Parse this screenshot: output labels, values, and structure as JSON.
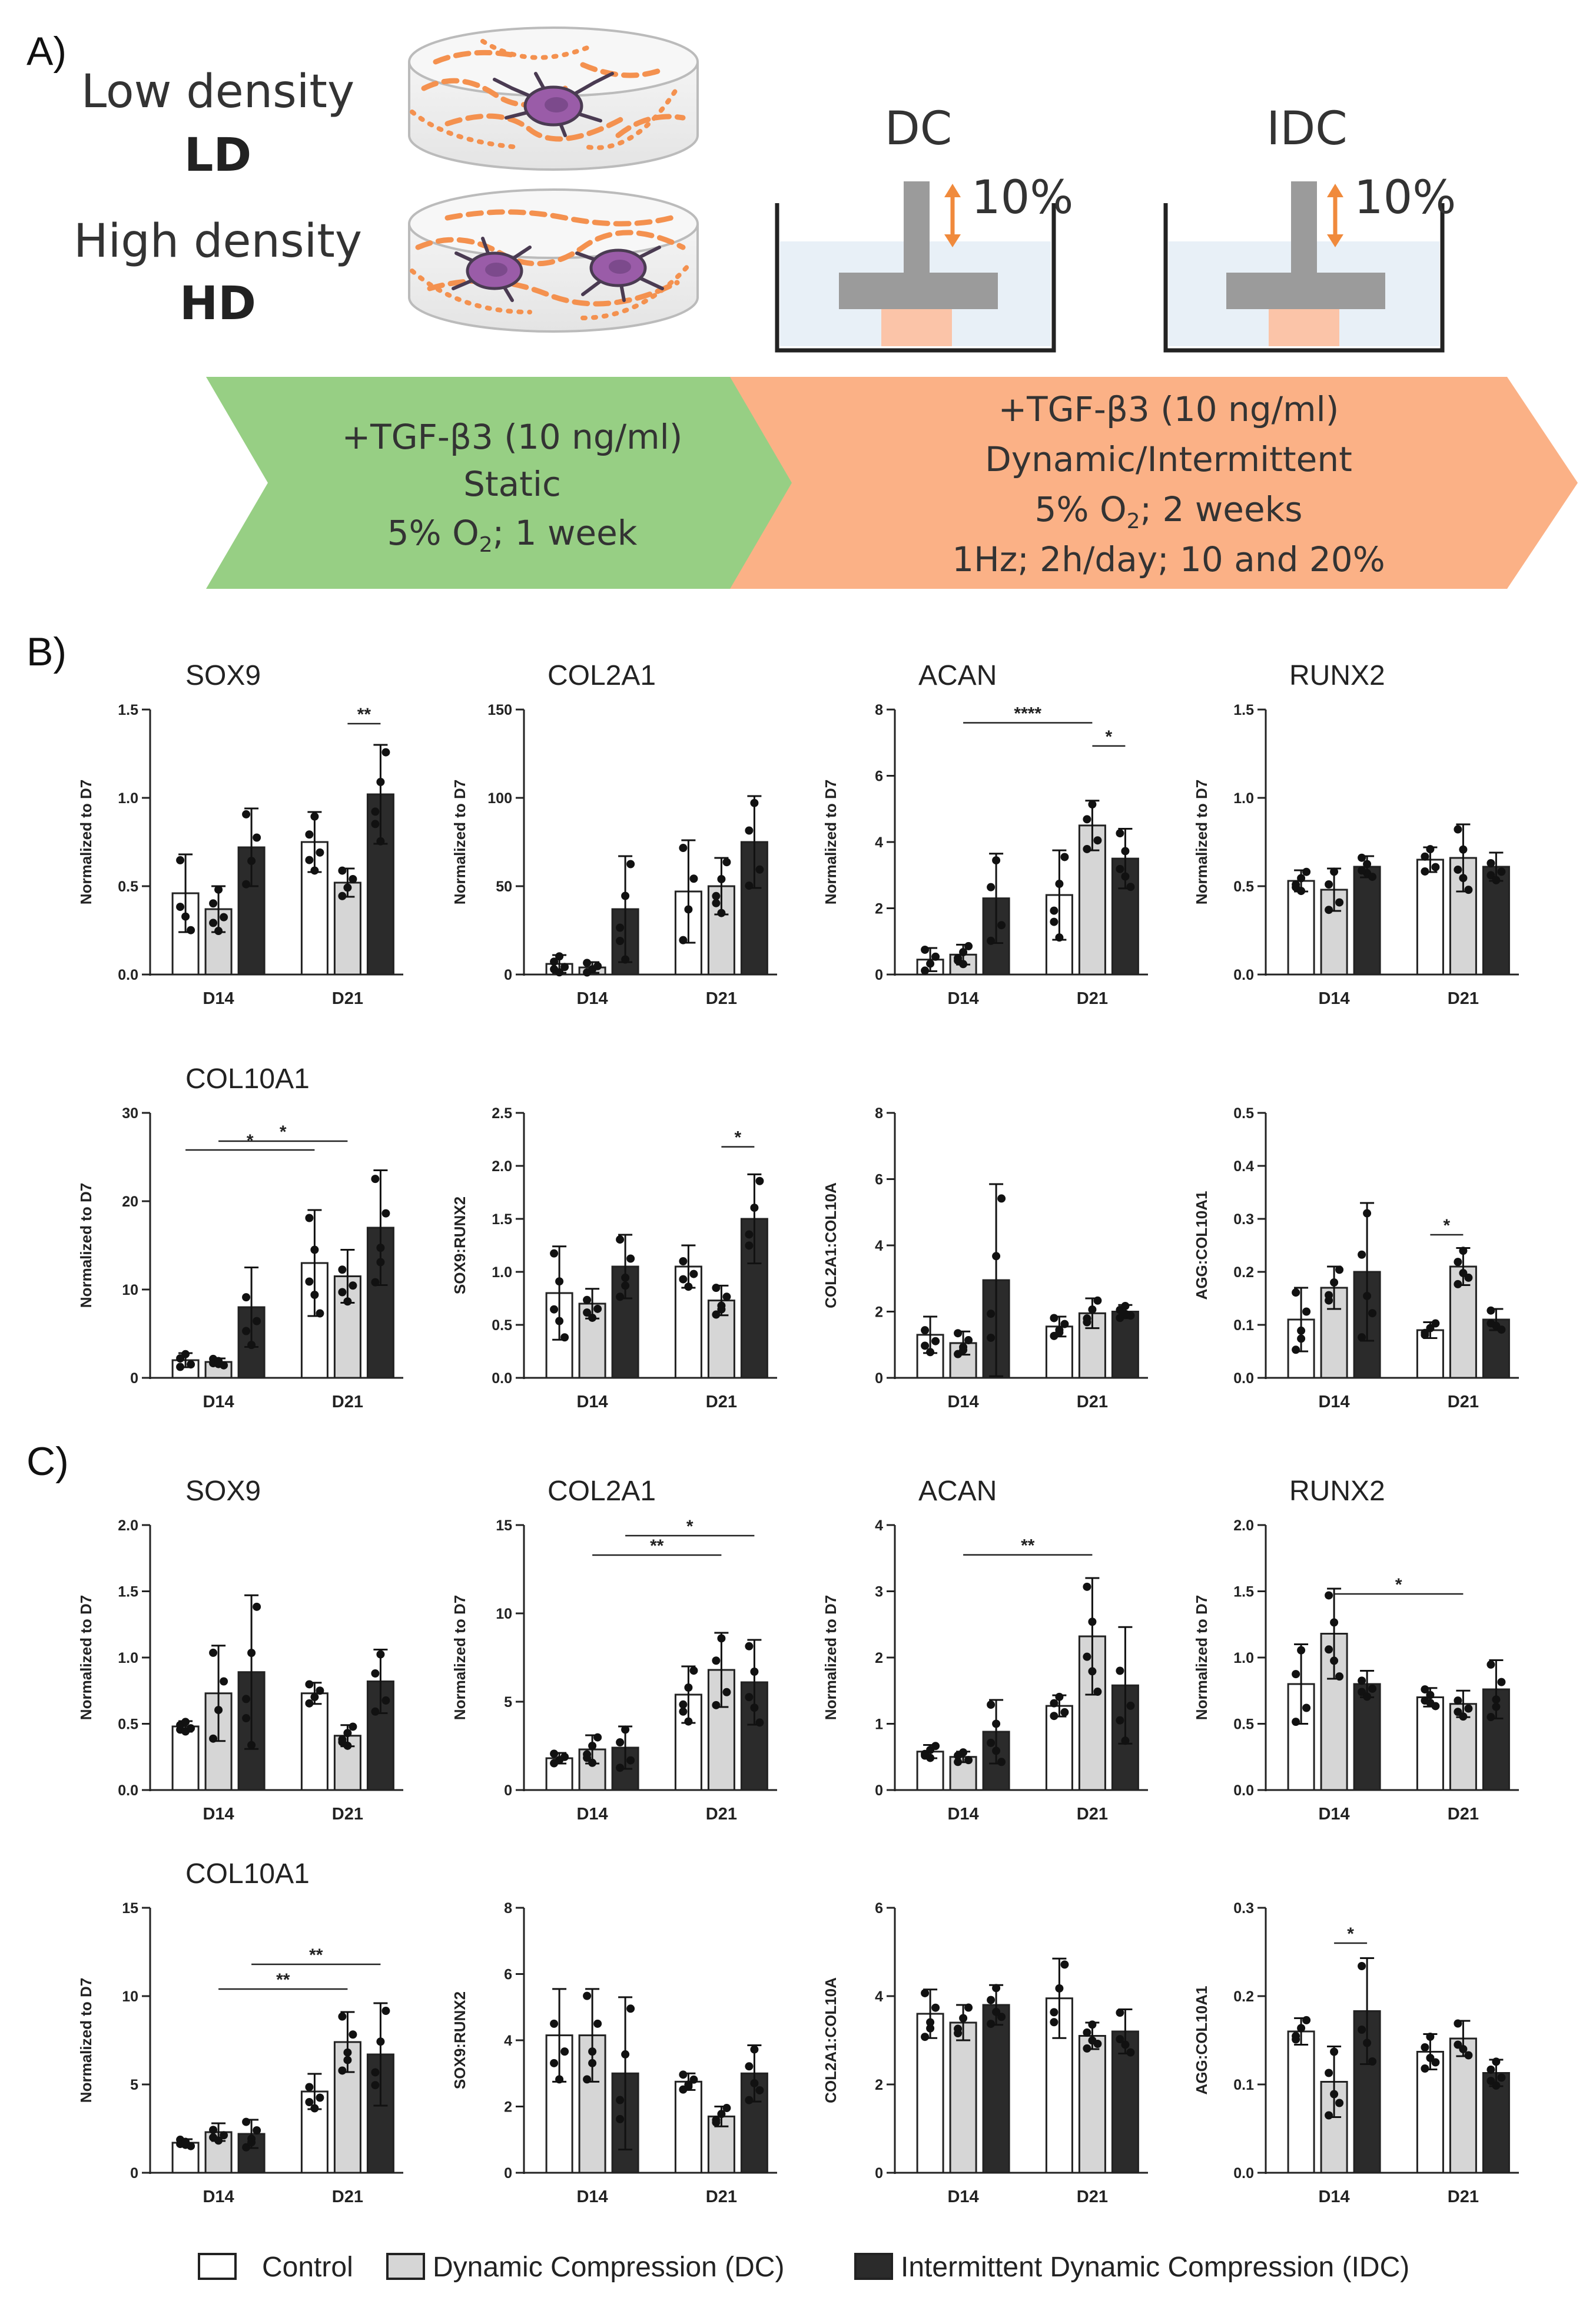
{
  "figure": {
    "panel_a": "A)",
    "panel_b": "B)",
    "panel_c": "C)"
  },
  "schematic": {
    "ld_title": "Low density",
    "ld_abbr": "LD",
    "hd_title": "High density",
    "hd_abbr": "HD",
    "dc_title": "DC",
    "idc_title": "IDC",
    "dc_strain": "10%",
    "idc_strain": "10%",
    "static_arrow": {
      "line1": "+TGF-β3 (10 ng/ml)",
      "line2": "Static",
      "line3_pre": "5% O",
      "line3_sub": "2",
      "line3_post": "; 1 week"
    },
    "dynamic_arrow": {
      "line1": "+TGF-β3 (10 ng/ml)",
      "line2": "Dynamic/Intermittent",
      "line3_pre": "5% O",
      "line3_sub": "2",
      "line3_post": "; 2 weeks",
      "line4": "1Hz; 2h/day; 10 and 20%"
    }
  },
  "legend": {
    "control": "Control",
    "dc": "Dynamic Compression (DC)",
    "idc": "Intermittent Dynamic Compression (IDC)"
  },
  "colors": {
    "control": "#ffffff",
    "dc": "#d6d6d6",
    "idc": "#2b2b2b",
    "green_arrow": "#97cf84",
    "orange_arrow": "#fbb186",
    "fiber": "#f4914f",
    "cell": "#9a5ca8"
  },
  "chart_data": [
    {
      "id": "b1",
      "type": "bar",
      "title": "SOX9",
      "ylabel": "Normalized to D7",
      "ylim": [
        0,
        1.5
      ],
      "ticks": [
        "0.0",
        "0.5",
        "1.0",
        "1.5"
      ],
      "categories": [
        "D14",
        "D21"
      ],
      "series": [
        {
          "name": "Control",
          "values": [
            0.46,
            0.75
          ],
          "err": [
            0.22,
            0.17
          ]
        },
        {
          "name": "Dynamic Compression (DC)",
          "values": [
            0.37,
            0.52
          ],
          "err": [
            0.13,
            0.08
          ]
        },
        {
          "name": "Intermittent Dynamic Compression (IDC)",
          "values": [
            0.72,
            1.02
          ],
          "err": [
            0.22,
            0.28
          ]
        }
      ],
      "annotations": [
        {
          "label": "**",
          "from": [
            1,
            1
          ],
          "to": [
            1,
            2
          ],
          "y": 1.42
        }
      ]
    },
    {
      "id": "b2",
      "type": "bar",
      "title": "COL2A1",
      "ylabel": "Normalized to D7",
      "ylim": [
        0,
        150
      ],
      "ticks": [
        "0",
        "50",
        "100",
        "150"
      ],
      "categories": [
        "D14",
        "D21"
      ],
      "series": [
        {
          "name": "Control",
          "values": [
            6,
            47
          ],
          "err": [
            5,
            29
          ]
        },
        {
          "name": "Dynamic Compression (DC)",
          "values": [
            4,
            50
          ],
          "err": [
            3,
            16
          ]
        },
        {
          "name": "Intermittent Dynamic Compression (IDC)",
          "values": [
            37,
            75
          ],
          "err": [
            30,
            26
          ]
        }
      ],
      "annotations": []
    },
    {
      "id": "b3",
      "type": "bar",
      "title": "ACAN",
      "ylabel": "Normalized to D7",
      "ylim": [
        0,
        8
      ],
      "ticks": [
        "0",
        "2",
        "4",
        "6",
        "8"
      ],
      "categories": [
        "D14",
        "D21"
      ],
      "series": [
        {
          "name": "Control",
          "values": [
            0.45,
            2.4
          ],
          "err": [
            0.35,
            1.35
          ]
        },
        {
          "name": "Dynamic Compression (DC)",
          "values": [
            0.6,
            4.5
          ],
          "err": [
            0.3,
            0.75
          ]
        },
        {
          "name": "Intermittent Dynamic Compression (IDC)",
          "values": [
            2.3,
            3.5
          ],
          "err": [
            1.35,
            0.9
          ]
        }
      ],
      "annotations": [
        {
          "label": "****",
          "from": [
            0,
            1
          ],
          "to": [
            1,
            1
          ],
          "y": 7.6
        },
        {
          "label": "*",
          "from": [
            1,
            1
          ],
          "to": [
            1,
            2
          ],
          "y": 6.9
        }
      ]
    },
    {
      "id": "b4",
      "type": "bar",
      "title": "RUNX2",
      "ylabel": "Normalized to D7",
      "ylim": [
        0,
        1.5
      ],
      "ticks": [
        "0.0",
        "0.5",
        "1.0",
        "1.5"
      ],
      "categories": [
        "D14",
        "D21"
      ],
      "series": [
        {
          "name": "Control",
          "values": [
            0.53,
            0.65
          ],
          "err": [
            0.06,
            0.07
          ]
        },
        {
          "name": "Dynamic Compression (DC)",
          "values": [
            0.48,
            0.66
          ],
          "err": [
            0.12,
            0.19
          ]
        },
        {
          "name": "Intermittent Dynamic Compression (IDC)",
          "values": [
            0.61,
            0.61
          ],
          "err": [
            0.06,
            0.08
          ]
        }
      ],
      "annotations": []
    },
    {
      "id": "b5",
      "type": "bar",
      "title": "COL10A1",
      "ylabel": "Normalized to D7",
      "ylim": [
        0,
        30
      ],
      "ticks": [
        "0",
        "10",
        "20",
        "30"
      ],
      "categories": [
        "D14",
        "D21"
      ],
      "series": [
        {
          "name": "Control",
          "values": [
            2,
            13
          ],
          "err": [
            0.8,
            6
          ]
        },
        {
          "name": "Dynamic Compression (DC)",
          "values": [
            1.8,
            11.5
          ],
          "err": [
            0.4,
            3
          ]
        },
        {
          "name": "Intermittent Dynamic Compression (IDC)",
          "values": [
            8,
            17
          ],
          "err": [
            4.5,
            6.5
          ]
        }
      ],
      "annotations": [
        {
          "label": "*",
          "from": [
            0,
            0
          ],
          "to": [
            1,
            0
          ],
          "y": 25.8
        },
        {
          "label": "*",
          "from": [
            0,
            1
          ],
          "to": [
            1,
            1
          ],
          "y": 26.8
        }
      ]
    },
    {
      "id": "b6",
      "type": "bar",
      "title": "",
      "ylabel": "SOX9:RUNX2",
      "ylim": [
        0,
        2.5
      ],
      "ticks": [
        "0.0",
        "0.5",
        "1.0",
        "1.5",
        "2.0",
        "2.5"
      ],
      "categories": [
        "D14",
        "D21"
      ],
      "series": [
        {
          "name": "Control",
          "values": [
            0.8,
            1.05
          ],
          "err": [
            0.44,
            0.2
          ]
        },
        {
          "name": "Dynamic Compression (DC)",
          "values": [
            0.7,
            0.73
          ],
          "err": [
            0.14,
            0.14
          ]
        },
        {
          "name": "Intermittent Dynamic Compression (IDC)",
          "values": [
            1.05,
            1.5
          ],
          "err": [
            0.3,
            0.42
          ]
        }
      ],
      "annotations": [
        {
          "label": "*",
          "from": [
            1,
            1
          ],
          "to": [
            1,
            2
          ],
          "y": 2.18
        }
      ]
    },
    {
      "id": "b7",
      "type": "bar",
      "title": "",
      "ylabel": "COL2A1:COL10A",
      "ylim": [
        0,
        8
      ],
      "ticks": [
        "0",
        "2",
        "4",
        "6",
        "8"
      ],
      "categories": [
        "D14",
        "D21"
      ],
      "series": [
        {
          "name": "Control",
          "values": [
            1.3,
            1.55
          ],
          "err": [
            0.55,
            0.3
          ]
        },
        {
          "name": "Dynamic Compression (DC)",
          "values": [
            1.05,
            1.95
          ],
          "err": [
            0.35,
            0.45
          ]
        },
        {
          "name": "Intermittent Dynamic Compression (IDC)",
          "values": [
            2.95,
            2.0
          ],
          "err": [
            2.9,
            0.2
          ]
        }
      ],
      "annotations": []
    },
    {
      "id": "b8",
      "type": "bar",
      "title": "",
      "ylabel": "AGG:COL10A1",
      "ylim": [
        0,
        0.5
      ],
      "ticks": [
        "0.0",
        "0.1",
        "0.2",
        "0.3",
        "0.4",
        "0.5"
      ],
      "categories": [
        "D14",
        "D21"
      ],
      "series": [
        {
          "name": "Control",
          "values": [
            0.11,
            0.09
          ],
          "err": [
            0.06,
            0.015
          ]
        },
        {
          "name": "Dynamic Compression (DC)",
          "values": [
            0.17,
            0.21
          ],
          "err": [
            0.04,
            0.035
          ]
        },
        {
          "name": "Intermittent Dynamic Compression (IDC)",
          "values": [
            0.2,
            0.11
          ],
          "err": [
            0.13,
            0.02
          ]
        }
      ],
      "annotations": [
        {
          "label": "*",
          "from": [
            1,
            0
          ],
          "to": [
            1,
            1
          ],
          "y": 0.27
        }
      ]
    },
    {
      "id": "c1",
      "type": "bar",
      "title": "SOX9",
      "ylabel": "Normalized to D7",
      "ylim": [
        0,
        2.0
      ],
      "ticks": [
        "0.0",
        "0.5",
        "1.0",
        "1.5",
        "2.0"
      ],
      "categories": [
        "D14",
        "D21"
      ],
      "series": [
        {
          "name": "Control",
          "values": [
            0.48,
            0.73
          ],
          "err": [
            0.04,
            0.08
          ]
        },
        {
          "name": "Dynamic Compression (DC)",
          "values": [
            0.73,
            0.41
          ],
          "err": [
            0.36,
            0.08
          ]
        },
        {
          "name": "Intermittent Dynamic Compression (IDC)",
          "values": [
            0.89,
            0.82
          ],
          "err": [
            0.58,
            0.24
          ]
        }
      ],
      "annotations": []
    },
    {
      "id": "c2",
      "type": "bar",
      "title": "COL2A1",
      "ylabel": "Normalized to D7",
      "ylim": [
        0,
        15
      ],
      "ticks": [
        "0",
        "5",
        "10",
        "15"
      ],
      "categories": [
        "D14",
        "D21"
      ],
      "series": [
        {
          "name": "Control",
          "values": [
            1.8,
            5.4
          ],
          "err": [
            0.3,
            1.6
          ]
        },
        {
          "name": "Dynamic Compression (DC)",
          "values": [
            2.3,
            6.8
          ],
          "err": [
            0.8,
            2.1
          ]
        },
        {
          "name": "Intermittent Dynamic Compression (IDC)",
          "values": [
            2.4,
            6.1
          ],
          "err": [
            1.2,
            2.4
          ]
        }
      ],
      "annotations": [
        {
          "label": "**",
          "from": [
            0,
            1
          ],
          "to": [
            1,
            1
          ],
          "y": 13.3
        },
        {
          "label": "*",
          "from": [
            0,
            2
          ],
          "to": [
            1,
            2
          ],
          "y": 14.4
        }
      ]
    },
    {
      "id": "c3",
      "type": "bar",
      "title": "ACAN",
      "ylabel": "Normalized to D7",
      "ylim": [
        0,
        4
      ],
      "ticks": [
        "0",
        "1",
        "2",
        "3",
        "4"
      ],
      "categories": [
        "D14",
        "D21"
      ],
      "series": [
        {
          "name": "Control",
          "values": [
            0.58,
            1.27
          ],
          "err": [
            0.1,
            0.16
          ]
        },
        {
          "name": "Dynamic Compression (DC)",
          "values": [
            0.5,
            2.32
          ],
          "err": [
            0.08,
            0.88
          ]
        },
        {
          "name": "Intermittent Dynamic Compression (IDC)",
          "values": [
            0.88,
            1.58
          ],
          "err": [
            0.48,
            0.88
          ]
        }
      ],
      "annotations": [
        {
          "label": "**",
          "from": [
            0,
            1
          ],
          "to": [
            1,
            1
          ],
          "y": 3.55
        }
      ]
    },
    {
      "id": "c4",
      "type": "bar",
      "title": "RUNX2",
      "ylabel": "Normalized to D7",
      "ylim": [
        0,
        2.0
      ],
      "ticks": [
        "0.0",
        "0.5",
        "1.0",
        "1.5",
        "2.0"
      ],
      "categories": [
        "D14",
        "D21"
      ],
      "series": [
        {
          "name": "Control",
          "values": [
            0.8,
            0.7
          ],
          "err": [
            0.3,
            0.07
          ]
        },
        {
          "name": "Dynamic Compression (DC)",
          "values": [
            1.18,
            0.65
          ],
          "err": [
            0.34,
            0.1
          ]
        },
        {
          "name": "Intermittent Dynamic Compression (IDC)",
          "values": [
            0.8,
            0.76
          ],
          "err": [
            0.1,
            0.22
          ]
        }
      ],
      "annotations": [
        {
          "label": "*",
          "from": [
            0,
            1
          ],
          "to": [
            1,
            1
          ],
          "y": 1.48
        }
      ]
    },
    {
      "id": "c5",
      "type": "bar",
      "title": "COL10A1",
      "ylabel": "Normalized to D7",
      "ylim": [
        0,
        15
      ],
      "ticks": [
        "0",
        "5",
        "10",
        "15"
      ],
      "categories": [
        "D14",
        "D21"
      ],
      "series": [
        {
          "name": "Control",
          "values": [
            1.7,
            4.6
          ],
          "err": [
            0.2,
            1.0
          ]
        },
        {
          "name": "Dynamic Compression (DC)",
          "values": [
            2.3,
            7.4
          ],
          "err": [
            0.5,
            1.7
          ]
        },
        {
          "name": "Intermittent Dynamic Compression (IDC)",
          "values": [
            2.2,
            6.7
          ],
          "err": [
            0.8,
            2.9
          ]
        }
      ],
      "annotations": [
        {
          "label": "**",
          "from": [
            0,
            1
          ],
          "to": [
            1,
            1
          ],
          "y": 10.4
        },
        {
          "label": "**",
          "from": [
            0,
            2
          ],
          "to": [
            1,
            2
          ],
          "y": 11.8
        }
      ]
    },
    {
      "id": "c6",
      "type": "bar",
      "title": "",
      "ylabel": "SOX9:RUNX2",
      "ylim": [
        0,
        8
      ],
      "ticks": [
        "0",
        "2",
        "4",
        "6",
        "8"
      ],
      "categories": [
        "D14",
        "D21"
      ],
      "series": [
        {
          "name": "Control",
          "values": [
            4.15,
            2.75
          ],
          "err": [
            1.4,
            0.25
          ]
        },
        {
          "name": "Dynamic Compression (DC)",
          "values": [
            4.15,
            1.7
          ],
          "err": [
            1.4,
            0.3
          ]
        },
        {
          "name": "Intermittent Dynamic Compression (IDC)",
          "values": [
            3.0,
            3.0
          ],
          "err": [
            2.3,
            0.85
          ]
        }
      ],
      "annotations": []
    },
    {
      "id": "c7",
      "type": "bar",
      "title": "",
      "ylabel": "COL2A1:COL10A",
      "ylim": [
        0,
        6
      ],
      "ticks": [
        "0",
        "2",
        "4",
        "6"
      ],
      "categories": [
        "D14",
        "D21"
      ],
      "series": [
        {
          "name": "Control",
          "values": [
            3.6,
            3.95
          ],
          "err": [
            0.55,
            0.9
          ]
        },
        {
          "name": "Dynamic Compression (DC)",
          "values": [
            3.4,
            3.1
          ],
          "err": [
            0.4,
            0.3
          ]
        },
        {
          "name": "Intermittent Dynamic Compression (IDC)",
          "values": [
            3.8,
            3.2
          ],
          "err": [
            0.45,
            0.5
          ]
        }
      ],
      "annotations": []
    },
    {
      "id": "c8",
      "type": "bar",
      "title": "",
      "ylabel": "AGG:COL10A1",
      "ylim": [
        0,
        0.3
      ],
      "ticks": [
        "0.0",
        "0.1",
        "0.2",
        "0.3"
      ],
      "categories": [
        "D14",
        "D21"
      ],
      "series": [
        {
          "name": "Control",
          "values": [
            0.16,
            0.137
          ],
          "err": [
            0.015,
            0.02
          ]
        },
        {
          "name": "Dynamic Compression (DC)",
          "values": [
            0.103,
            0.152
          ],
          "err": [
            0.04,
            0.02
          ]
        },
        {
          "name": "Intermittent Dynamic Compression (IDC)",
          "values": [
            0.183,
            0.113
          ],
          "err": [
            0.06,
            0.015
          ]
        }
      ],
      "annotations": [
        {
          "label": "*",
          "from": [
            0,
            1
          ],
          "to": [
            0,
            2
          ],
          "y": 0.26
        }
      ]
    }
  ]
}
